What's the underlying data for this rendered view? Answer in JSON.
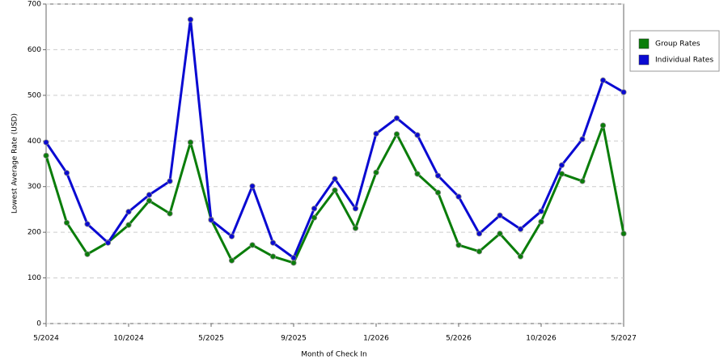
{
  "chart_data": {
    "type": "line",
    "x_label": "Month of Check In",
    "y_label": "Lowest Average Rate (USD)",
    "categories": [
      "5/2024",
      null,
      null,
      null,
      "10/2024",
      null,
      null,
      null,
      "5/2025",
      null,
      null,
      null,
      "9/2025",
      null,
      null,
      null,
      "1/2026",
      null,
      null,
      null,
      "5/2026",
      null,
      null,
      null,
      "10/2026",
      null,
      null,
      null,
      "5/2027"
    ],
    "series": [
      {
        "name": "Group Rates",
        "color": "#0a7d0a",
        "values": [
          368,
          221,
          152,
          178,
          216,
          269,
          241,
          397,
          228,
          138,
          172,
          147,
          133,
          232,
          292,
          209,
          331,
          415,
          328,
          287,
          172,
          158,
          197,
          147,
          223,
          328,
          312,
          434,
          197
        ]
      },
      {
        "name": "Individual Rates",
        "color": "#0a0ad2",
        "values": [
          397,
          330,
          218,
          177,
          245,
          282,
          312,
          666,
          227,
          191,
          301,
          177,
          144,
          252,
          317,
          252,
          416,
          450,
          413,
          324,
          278,
          197,
          237,
          207,
          246,
          347,
          404,
          533,
          507
        ]
      }
    ],
    "ylim": [
      0,
      700
    ],
    "yticks": [
      0,
      100,
      200,
      300,
      400,
      500,
      600,
      700
    ],
    "grid": true,
    "legend": "right"
  }
}
